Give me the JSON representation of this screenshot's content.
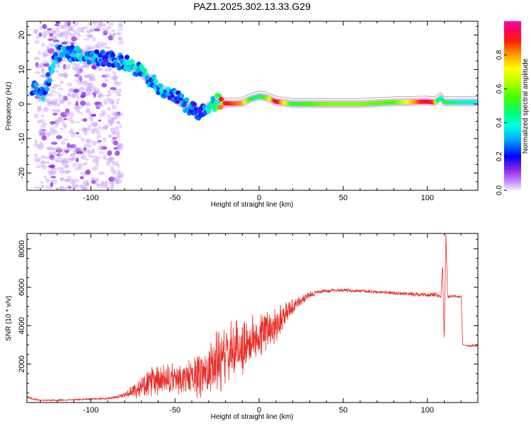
{
  "title": "PAZ1.2025.302.13.33.G29",
  "colorbar_label": "Normalized spectral amplitude",
  "chart_data": [
    {
      "type": "heatmap",
      "title": "PAZ1.2025.302.13.33.G29",
      "xlabel": "Height of straight line (km)",
      "ylabel": "Frequency (Hz)",
      "xlim": [
        -138,
        130
      ],
      "ylim": [
        -25,
        24
      ],
      "xticks": [
        -100,
        -50,
        0,
        50,
        100
      ],
      "yticks": [
        20,
        10,
        0,
        -10,
        -20
      ],
      "xtick_labels": [
        "-100",
        "-50",
        "0",
        "50",
        "100"
      ],
      "ytick_labels": [
        "20",
        "10",
        "0",
        "-10",
        "-20"
      ],
      "colorbar": {
        "label": "Normalized spectral amplitude",
        "range": [
          0,
          1
        ],
        "ticks": [
          0.0,
          0.2,
          0.4,
          0.6,
          0.8
        ],
        "tick_labels": [
          "0.0",
          "0.2",
          "0.4",
          "0.6",
          "0.8"
        ]
      },
      "ridge": {
        "x": [
          -135,
          -128,
          -120,
          -110,
          -100,
          -90,
          -80,
          -72,
          -65,
          -58,
          -50,
          -42,
          -35,
          -30,
          -25,
          -20,
          -15,
          -10,
          -5,
          0,
          5,
          10,
          20,
          40,
          60,
          80,
          100,
          104,
          106,
          108,
          110,
          120,
          130
        ],
        "frequency": [
          5,
          3,
          15,
          14.5,
          13.5,
          13,
          12,
          10,
          7,
          4,
          2,
          -1,
          -2.5,
          -1,
          0.5,
          0.2,
          0.1,
          0.3,
          1.5,
          2.2,
          1.8,
          0.7,
          0,
          0,
          0,
          0.5,
          0.7,
          0.5,
          1,
          1.8,
          0.5,
          0.5,
          0.5
        ],
        "amplitude": [
          0.3,
          0.25,
          0.3,
          0.3,
          0.3,
          0.2,
          0.3,
          0.35,
          0.3,
          0.3,
          0.25,
          0.25,
          0.2,
          0.3,
          0.55,
          0.9,
          0.85,
          0.8,
          0.5,
          0.45,
          0.6,
          0.95,
          0.5,
          0.6,
          0.6,
          0.55,
          0.95,
          0.85,
          0.5,
          0.4,
          0.5,
          0.4,
          0.4
        ]
      },
      "scatter_region": {
        "x_range": [
          -133,
          -82
        ],
        "frequency_range": [
          -25,
          24
        ],
        "amplitude": 0.08
      }
    },
    {
      "type": "line",
      "xlabel": "Height of straight line (km)",
      "ylabel": "SNR (10 * v/v)",
      "xlim": [
        -138,
        130
      ],
      "ylim": [
        0,
        8800
      ],
      "xticks": [
        -100,
        -50,
        0,
        50,
        100
      ],
      "yticks": [
        2000,
        4000,
        6000,
        8000
      ],
      "xtick_labels": [
        "-100",
        "-50",
        "0",
        "50",
        "100"
      ],
      "ytick_labels": [
        "2000",
        "4000",
        "6000",
        "8000"
      ],
      "color": "#e8302a",
      "series": [
        {
          "name": "SNR",
          "x": [
            -138,
            -135,
            -130,
            -120,
            -110,
            -100,
            -90,
            -85,
            -80,
            -75,
            -70,
            -65,
            -60,
            -55,
            -50,
            -45,
            -40,
            -35,
            -30,
            -25,
            -20,
            -15,
            -10,
            -5,
            0,
            5,
            10,
            15,
            20,
            25,
            30,
            35,
            40,
            45,
            50,
            60,
            70,
            80,
            90,
            100,
            105,
            108,
            109,
            110,
            111,
            112,
            115,
            119,
            120,
            121,
            125,
            130
          ],
          "y": [
            300,
            200,
            120,
            120,
            150,
            180,
            220,
            260,
            400,
            600,
            800,
            1000,
            1100,
            1150,
            1200,
            1250,
            1300,
            1500,
            1700,
            2100,
            2400,
            2700,
            2900,
            3200,
            3500,
            3800,
            4100,
            4600,
            5000,
            5300,
            5600,
            5750,
            5800,
            5850,
            5850,
            5800,
            5750,
            5700,
            5650,
            5600,
            5600,
            5500,
            7200,
            3200,
            8800,
            5500,
            5550,
            5500,
            5550,
            3000,
            2950,
            2950
          ],
          "jitter": [
            60,
            50,
            40,
            40,
            40,
            50,
            60,
            80,
            150,
            400,
            700,
            900,
            1000,
            900,
            1000,
            1000,
            1100,
            1400,
            1600,
            2000,
            1700,
            1800,
            1700,
            1400,
            1300,
            1200,
            1100,
            800,
            500,
            300,
            200,
            120,
            120,
            100,
            100,
            100,
            100,
            100,
            120,
            130,
            150,
            100,
            0,
            0,
            0,
            100,
            80,
            80,
            0,
            0,
            60,
            60
          ]
        }
      ]
    }
  ]
}
